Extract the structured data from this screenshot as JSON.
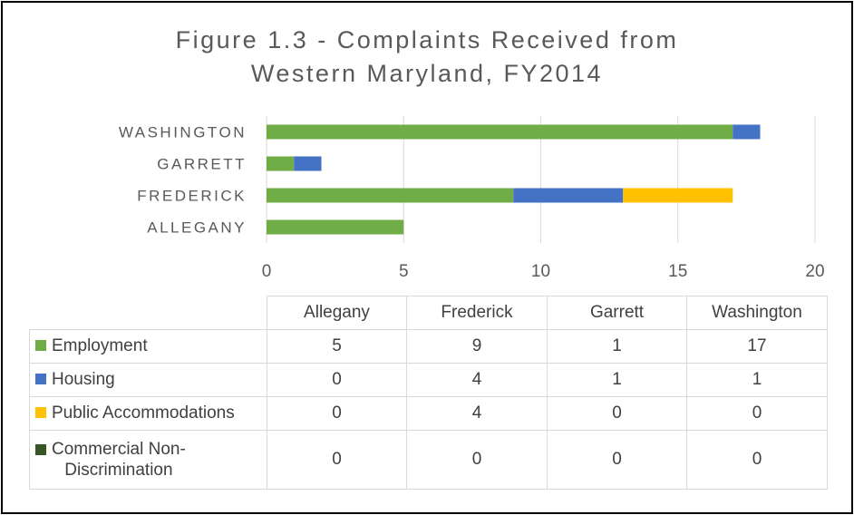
{
  "chart_data": {
    "type": "bar",
    "orientation": "horizontal",
    "stacked": true,
    "title_line1": "Figure 1.3 - Complaints Received from",
    "title_line2": "Western Maryland, FY2014",
    "categories_display": [
      "WASHINGTON",
      "GARRETT",
      "FREDERICK",
      "ALLEGANY"
    ],
    "table_columns": [
      "Allegany",
      "Frederick",
      "Garrett",
      "Washington"
    ],
    "xlim": [
      0,
      20
    ],
    "xticks": [
      "0",
      "5",
      "10",
      "15",
      "20"
    ],
    "grid": true,
    "series": [
      {
        "name": "Employment",
        "color": "#70ad47",
        "values": [
          5,
          9,
          1,
          17
        ]
      },
      {
        "name": "Housing",
        "color": "#4472c4",
        "values": [
          0,
          4,
          1,
          1
        ]
      },
      {
        "name": "Public Accommodations",
        "color": "#ffc000",
        "values": [
          0,
          4,
          0,
          0
        ]
      },
      {
        "name_line1": "Commercial Non-",
        "name_line2": "Discrimination",
        "color": "#375623",
        "values": [
          0,
          0,
          0,
          0
        ]
      }
    ]
  }
}
